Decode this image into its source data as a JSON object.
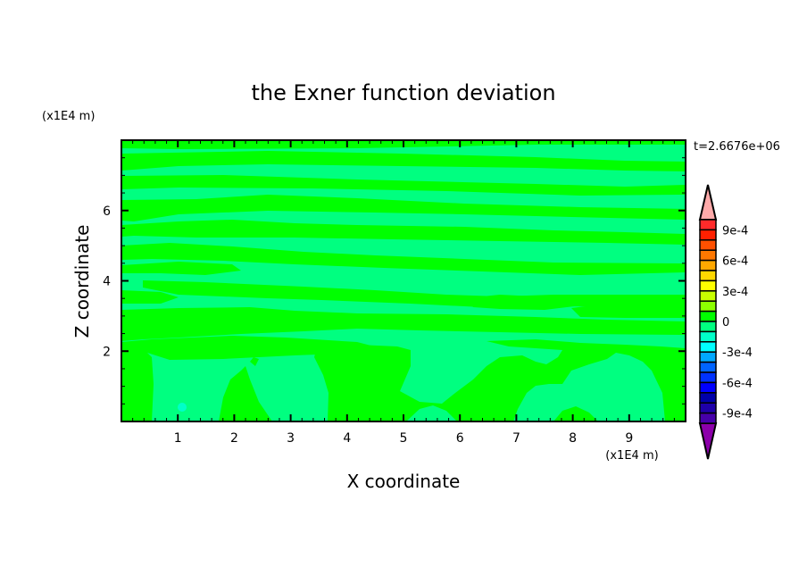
{
  "chart_data": {
    "type": "heatmap",
    "subtype": "filled-contour",
    "title": "the Exner function deviation",
    "xlabel": "X coordinate",
    "ylabel": "Z coordinate",
    "x_unit": "(x1E4 m)",
    "y_unit": "(x1E4 m)",
    "annotation": "t=2.6676e+06",
    "xlim": [
      0,
      10
    ],
    "ylim": [
      0,
      8
    ],
    "x_ticks": [
      1,
      2,
      3,
      4,
      5,
      6,
      7,
      8,
      9
    ],
    "x_tick_labels": [
      "1",
      "2",
      "3",
      "4",
      "5",
      "6",
      "7",
      "8",
      "9"
    ],
    "y_ticks": [
      2,
      4,
      6
    ],
    "y_tick_labels": [
      "2",
      "4",
      "6"
    ],
    "colorbar": {
      "levels_min": -0.001,
      "levels_max": 0.001,
      "level_step": 0.0001,
      "extend": "both",
      "tick_values": [
        0.0009,
        0.0006,
        0.0003,
        0,
        -0.0003,
        -0.0006,
        -0.0009
      ],
      "tick_labels": [
        "9e-4",
        "6e-4",
        "3e-4",
        "0",
        "-3e-4",
        "-6e-4",
        "-9e-4"
      ],
      "colors_top_to_bottom": [
        "#ff2a2a",
        "#ff2000",
        "#ff5000",
        "#ff7800",
        "#ffa800",
        "#ffd800",
        "#ffff00",
        "#c8ff00",
        "#8cff00",
        "#00ff00",
        "#00ff80",
        "#00ffc8",
        "#00ffff",
        "#00a8ff",
        "#0064ff",
        "#0032ff",
        "#0000ff",
        "#0000aa",
        "#1e00aa",
        "#4600aa"
      ],
      "over_color": "#ffaaaa",
      "under_color": "#8c00aa"
    },
    "field_summary": "values mostly between -1e-4 and 1e-4; layered horizontal bands of 0..1e-4 (#00ff00) and -1e-4..0 (#00ff80) above z≈2, plumes below; small -2e-4 spot near x≈1.1, z≈0.4",
    "grid": false
  }
}
